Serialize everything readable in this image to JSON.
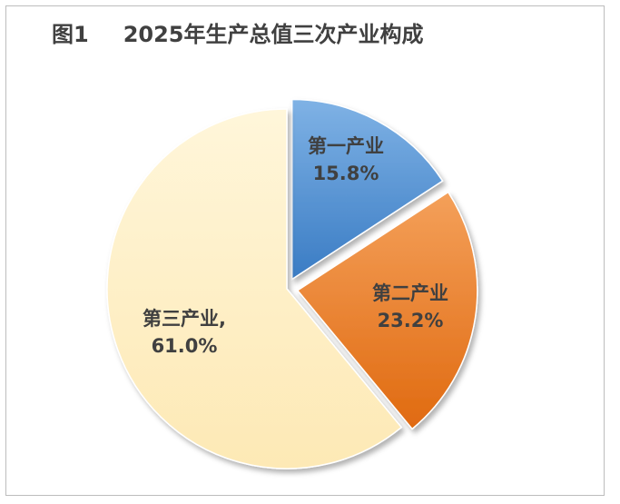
{
  "title": {
    "figure_label": "图1",
    "text": "2025年生产总值三次产业构成"
  },
  "chart_data": {
    "type": "pie",
    "title": "2025年生产总值三次产业构成",
    "categories": [
      "第一产业",
      "第二产业",
      "第三产业"
    ],
    "values": [
      15.8,
      23.2,
      61.0
    ],
    "unit": "%",
    "value_labels": [
      "15.8%",
      "23.2%",
      "61.0%"
    ],
    "label_texts": [
      "第一产业",
      "第二产业",
      "第三产业,"
    ],
    "colors": [
      "#5b9bd5",
      "#ed7d31",
      "#fff2cc"
    ],
    "exploded": [
      true,
      true,
      false
    ],
    "legend": "none"
  }
}
